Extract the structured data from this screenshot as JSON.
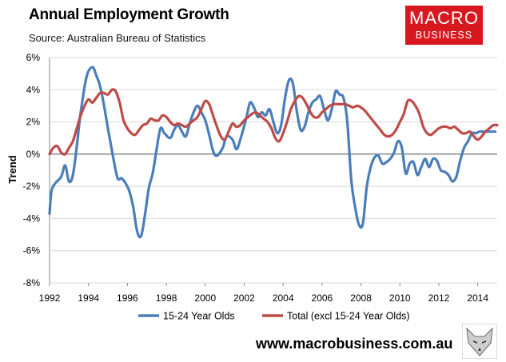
{
  "header": {
    "title": "Annual Employment Growth",
    "source": "Source: Australian Bureau of Statistics"
  },
  "logo": {
    "line1": "MACRO",
    "line2": "BUSINESS"
  },
  "footer": {
    "website": "www.macrobusiness.com.au"
  },
  "colors": {
    "series1": "#4a7ebb",
    "series2": "#be4b48",
    "grid": "#d9d9d9",
    "logo_bg": "#d7191f"
  },
  "chart_data": {
    "type": "line",
    "title": "Annual Employment Growth",
    "ylabel": "Trend",
    "xlabel": "",
    "xlim": [
      1992,
      2015
    ],
    "ylim": [
      -8,
      6
    ],
    "yticks": [
      -8,
      -6,
      -4,
      -2,
      0,
      2,
      4,
      6
    ],
    "ytick_labels": [
      "-8%",
      "-6%",
      "-4%",
      "-2%",
      "0%",
      "2%",
      "4%",
      "6%"
    ],
    "xticks": [
      1992,
      1994,
      1996,
      1998,
      2000,
      2002,
      2004,
      2006,
      2008,
      2010,
      2012,
      2014
    ],
    "xtick_labels": [
      "1992",
      "1994",
      "1996",
      "1998",
      "2000",
      "2002",
      "2004",
      "2006",
      "2008",
      "2010",
      "2012",
      "2014"
    ],
    "grid": "horizontal",
    "legend": "bottom",
    "series": [
      {
        "name": "15-24 Year Olds",
        "x": [
          1992.0,
          1992.1,
          1992.3,
          1992.6,
          1992.8,
          1993.0,
          1993.2,
          1993.4,
          1993.6,
          1993.9,
          1994.2,
          1994.4,
          1994.6,
          1994.8,
          1995.0,
          1995.3,
          1995.5,
          1995.7,
          1995.9,
          1996.1,
          1996.3,
          1996.5,
          1996.7,
          1996.9,
          1997.1,
          1997.3,
          1997.5,
          1997.7,
          1997.9,
          1998.2,
          1998.4,
          1998.6,
          1998.8,
          1999.0,
          1999.2,
          1999.4,
          1999.6,
          1999.8,
          2000.0,
          2000.2,
          2000.4,
          2000.6,
          2000.9,
          2001.1,
          2001.4,
          2001.6,
          2001.8,
          2002.1,
          2002.3,
          2002.5,
          2002.7,
          2002.9,
          2003.1,
          2003.3,
          2003.5,
          2003.7,
          2003.9,
          2004.1,
          2004.3,
          2004.5,
          2004.7,
          2004.9,
          2005.1,
          2005.3,
          2005.5,
          2005.7,
          2005.9,
          2006.1,
          2006.3,
          2006.5,
          2006.7,
          2006.9,
          2007.1,
          2007.3,
          2007.5,
          2007.7,
          2007.9,
          2008.1,
          2008.3,
          2008.5,
          2008.7,
          2008.9,
          2009.1,
          2009.3,
          2009.5,
          2009.7,
          2009.9,
          2010.1,
          2010.3,
          2010.5,
          2010.7,
          2010.9,
          2011.1,
          2011.3,
          2011.5,
          2011.7,
          2011.9,
          2012.1,
          2012.3,
          2012.5,
          2012.7,
          2012.9,
          2013.1,
          2013.3,
          2013.5,
          2013.7,
          2013.9,
          2014.1,
          2014.3,
          2014.5,
          2014.7,
          2014.9
        ],
        "values": [
          -3.7,
          -2.3,
          -1.8,
          -1.4,
          -0.7,
          -1.7,
          -1.3,
          0.5,
          2.6,
          4.8,
          5.4,
          4.9,
          4.2,
          3.0,
          1.6,
          -0.4,
          -1.5,
          -1.5,
          -1.8,
          -2.3,
          -3.3,
          -4.8,
          -5.1,
          -3.8,
          -2.1,
          -1.2,
          0.3,
          1.6,
          1.3,
          1.0,
          1.5,
          1.8,
          1.4,
          1.1,
          1.9,
          2.6,
          3.0,
          2.6,
          2.1,
          1.2,
          0.2,
          -0.1,
          0.4,
          1.1,
          0.9,
          0.3,
          0.9,
          2.2,
          3.2,
          2.9,
          2.3,
          2.6,
          2.4,
          2.8,
          2.0,
          1.3,
          1.8,
          3.5,
          4.6,
          4.4,
          2.7,
          1.5,
          1.7,
          2.6,
          3.2,
          3.4,
          3.6,
          2.8,
          2.1,
          2.8,
          3.9,
          3.7,
          3.5,
          2.0,
          -1.6,
          -3.3,
          -4.4,
          -4.3,
          -2.0,
          -0.8,
          -0.2,
          -0.1,
          -0.6,
          -0.5,
          -0.3,
          0.1,
          0.8,
          0.4,
          -1.2,
          -0.6,
          -0.5,
          -1.3,
          -0.8,
          -0.3,
          -0.8,
          -0.3,
          -0.4,
          -1.0,
          -1.1,
          -1.3,
          -1.7,
          -1.4,
          -0.4,
          0.4,
          0.8,
          1.3,
          1.3,
          1.4,
          1.4,
          1.4,
          1.4,
          1.4
        ]
      },
      {
        "name": "Total (excl 15-24 Year Olds)",
        "x": [
          1992.0,
          1992.2,
          1992.4,
          1992.6,
          1992.8,
          1993.0,
          1993.2,
          1993.4,
          1993.6,
          1993.8,
          1994.0,
          1994.2,
          1994.4,
          1994.6,
          1994.8,
          1995.0,
          1995.2,
          1995.4,
          1995.6,
          1995.8,
          1996.0,
          1996.2,
          1996.4,
          1996.6,
          1996.8,
          1997.0,
          1997.2,
          1997.4,
          1997.6,
          1997.8,
          1998.0,
          1998.2,
          1998.4,
          1998.6,
          1998.8,
          1999.0,
          1999.2,
          1999.4,
          1999.6,
          1999.8,
          2000.0,
          2000.2,
          2000.4,
          2000.6,
          2000.8,
          2001.0,
          2001.2,
          2001.4,
          2001.6,
          2001.8,
          2002.0,
          2002.2,
          2002.4,
          2002.6,
          2002.8,
          2003.0,
          2003.2,
          2003.4,
          2003.6,
          2003.8,
          2004.0,
          2004.2,
          2004.4,
          2004.6,
          2004.8,
          2005.0,
          2005.2,
          2005.4,
          2005.6,
          2005.8,
          2006.0,
          2006.2,
          2006.4,
          2006.6,
          2006.8,
          2007.0,
          2007.2,
          2007.4,
          2007.6,
          2007.8,
          2008.0,
          2008.2,
          2008.4,
          2008.6,
          2008.8,
          2009.0,
          2009.2,
          2009.4,
          2009.6,
          2009.8,
          2010.0,
          2010.2,
          2010.4,
          2010.6,
          2010.8,
          2011.0,
          2011.2,
          2011.4,
          2011.6,
          2011.8,
          2012.0,
          2012.2,
          2012.4,
          2012.6,
          2012.8,
          2013.0,
          2013.2,
          2013.4,
          2013.6,
          2013.8,
          2014.0,
          2014.2,
          2014.4,
          2014.6,
          2014.8,
          2015.0
        ],
        "values": [
          0.0,
          0.4,
          0.5,
          0.1,
          0.0,
          0.4,
          0.8,
          1.6,
          2.4,
          3.0,
          3.4,
          3.2,
          3.5,
          3.8,
          3.8,
          3.7,
          4.0,
          3.9,
          3.2,
          2.1,
          1.6,
          1.3,
          1.2,
          1.5,
          1.8,
          1.9,
          2.2,
          2.1,
          2.1,
          2.4,
          2.3,
          2.0,
          1.8,
          1.9,
          1.8,
          1.7,
          1.9,
          2.1,
          2.3,
          2.8,
          3.3,
          3.1,
          2.4,
          1.7,
          1.1,
          0.9,
          1.4,
          1.9,
          1.7,
          1.8,
          2.1,
          2.3,
          2.5,
          2.6,
          2.4,
          2.2,
          2.0,
          1.6,
          1.0,
          0.8,
          1.3,
          2.0,
          2.8,
          3.3,
          3.6,
          3.5,
          3.1,
          2.6,
          2.3,
          2.3,
          2.6,
          2.8,
          3.0,
          3.1,
          3.1,
          3.1,
          3.1,
          3.0,
          2.9,
          3.0,
          2.9,
          2.7,
          2.4,
          2.1,
          1.8,
          1.5,
          1.2,
          1.1,
          1.2,
          1.5,
          2.0,
          2.5,
          3.3,
          3.3,
          3.0,
          2.5,
          1.7,
          1.3,
          1.2,
          1.4,
          1.6,
          1.7,
          1.7,
          1.6,
          1.7,
          1.5,
          1.3,
          1.3,
          1.4,
          1.1,
          0.9,
          1.1,
          1.4,
          1.6,
          1.8,
          1.8
        ]
      }
    ]
  }
}
